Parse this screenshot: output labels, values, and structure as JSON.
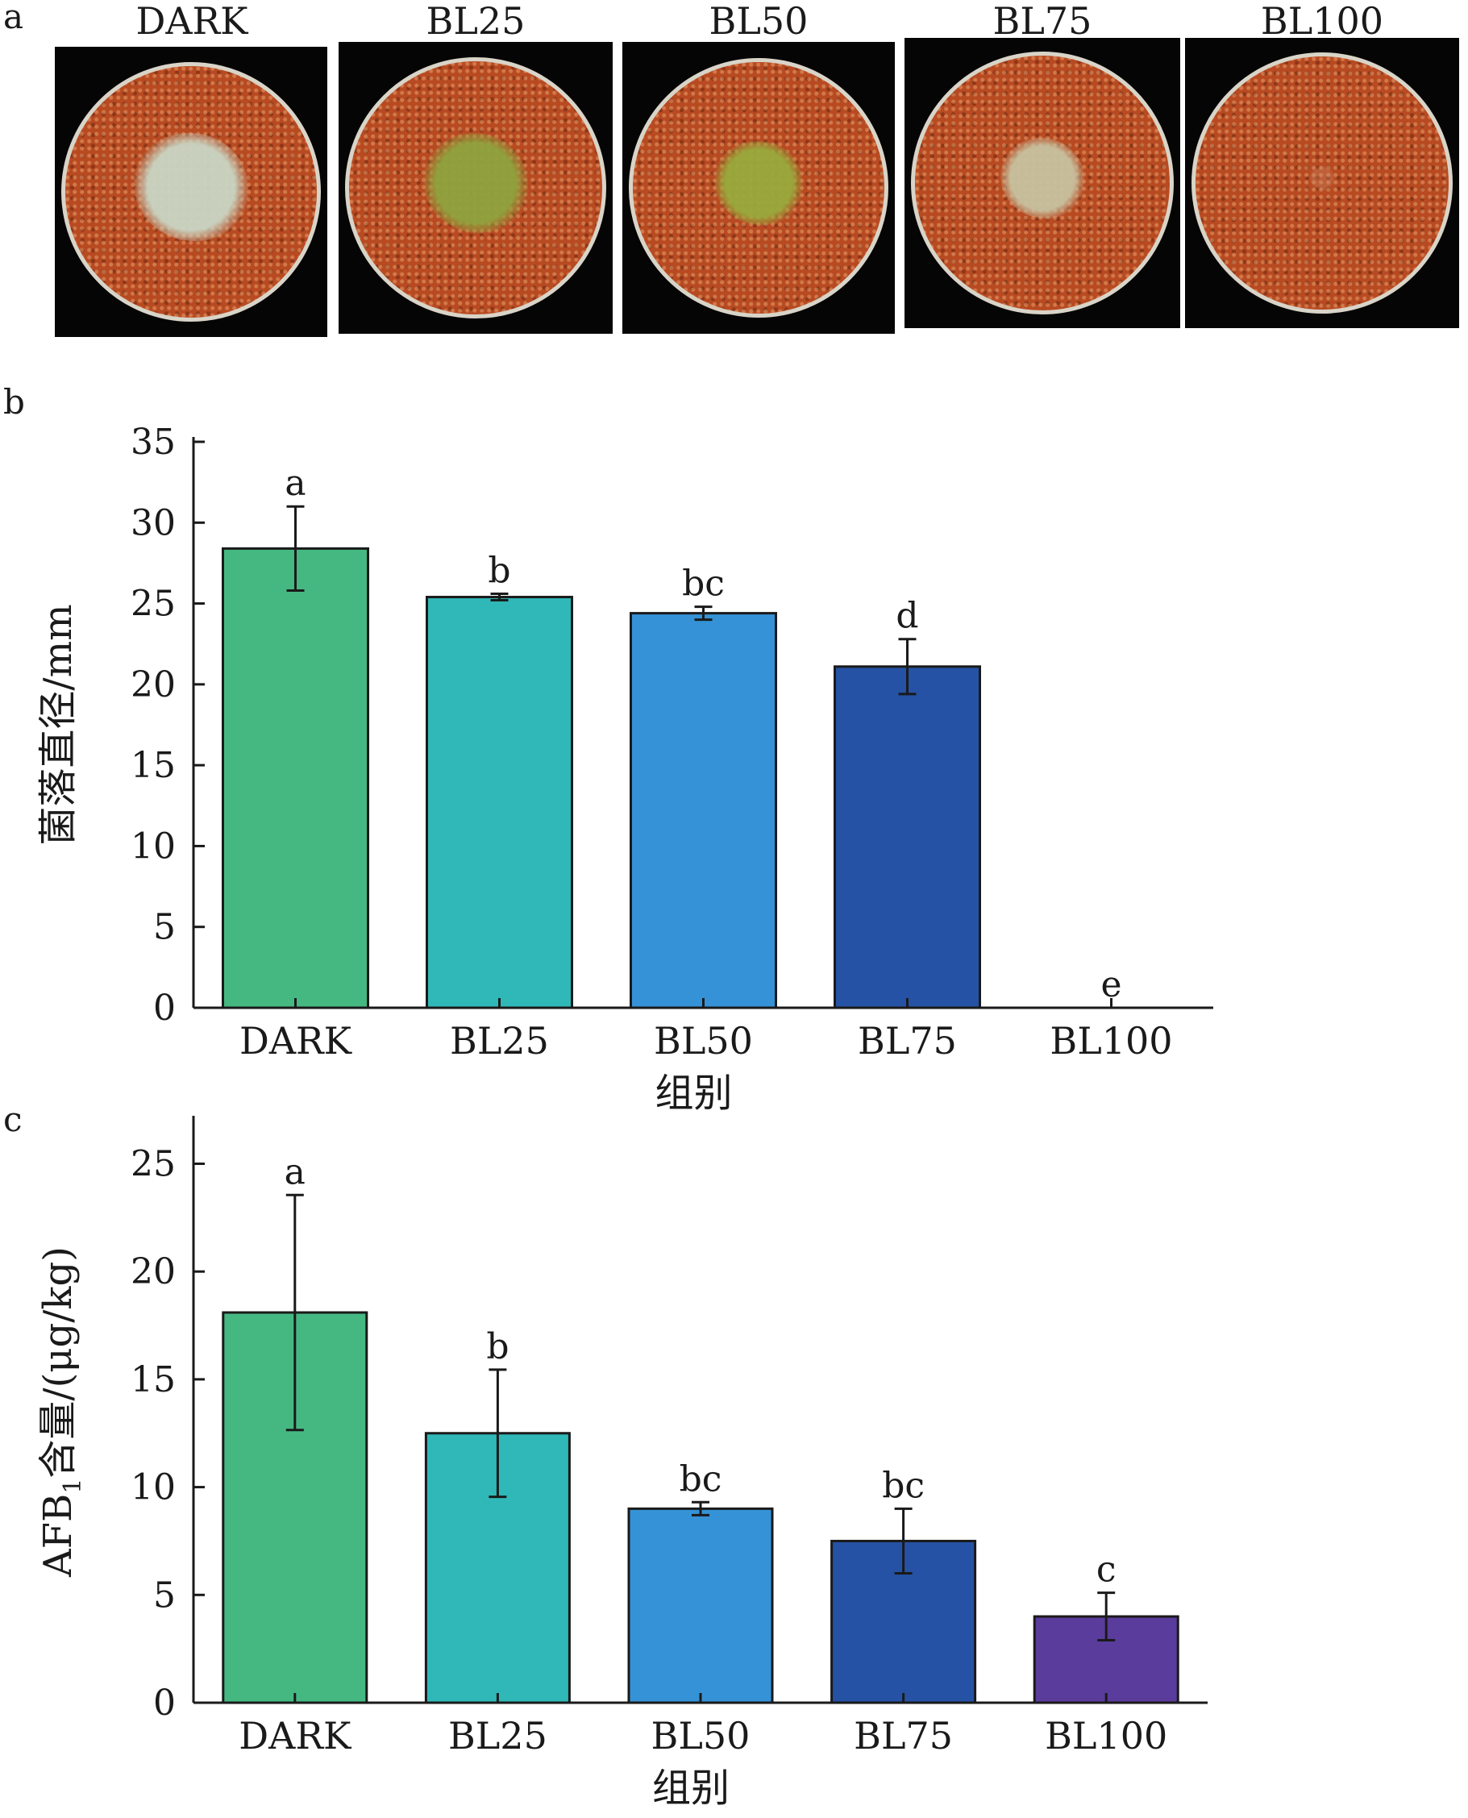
{
  "panel_letters": {
    "a": "a",
    "b": "b",
    "c": "c"
  },
  "photos": {
    "labels": [
      "DARK",
      "BL25",
      "BL50",
      "BL75",
      "BL100"
    ],
    "substrate_color": "#b84a22",
    "colony_colors": [
      "#c9d6c4",
      "#8fa33e",
      "#98aa3c",
      "#c7c2a0",
      "#c98763"
    ],
    "colony_size": [
      0.44,
      0.4,
      0.34,
      0.32,
      0.1
    ]
  },
  "chart_data": [
    {
      "type": "bar",
      "categories": [
        "DARK",
        "BL25",
        "BL50",
        "BL75",
        "BL100"
      ],
      "values": [
        28.4,
        25.4,
        24.4,
        21.1,
        0
      ],
      "errors": [
        2.6,
        0.2,
        0.4,
        1.7,
        0
      ],
      "significance_letters": [
        "a",
        "b",
        "bc",
        "d",
        "e"
      ],
      "colors": [
        "#45b882",
        "#30b8b8",
        "#3592d6",
        "#2552a4",
        "#5a3c9c"
      ],
      "ylabel": "菌落直径/mm",
      "xlabel": "组别",
      "ylim": [
        0,
        35
      ],
      "yticks": [
        0,
        5,
        10,
        15,
        20,
        25,
        30,
        35
      ],
      "grid": false
    },
    {
      "type": "bar",
      "categories": [
        "DARK",
        "BL25",
        "BL50",
        "BL75",
        "BL100"
      ],
      "values": [
        18.1,
        12.5,
        9.0,
        7.5,
        4.0
      ],
      "errors": [
        5.45,
        2.95,
        0.3,
        1.5,
        1.1
      ],
      "significance_letters": [
        "a",
        "b",
        "bc",
        "bc",
        "c"
      ],
      "colors": [
        "#45b882",
        "#30b8b8",
        "#3592d6",
        "#2552a4",
        "#5a3c9c"
      ],
      "ylabel": {
        "main": "AFB",
        "sub": "1",
        "rest": "含量/(μg/kg)"
      },
      "xlabel": "组别",
      "ylim": [
        0,
        27
      ],
      "yticks": [
        0,
        5,
        10,
        15,
        20,
        25
      ],
      "grid": false
    }
  ]
}
